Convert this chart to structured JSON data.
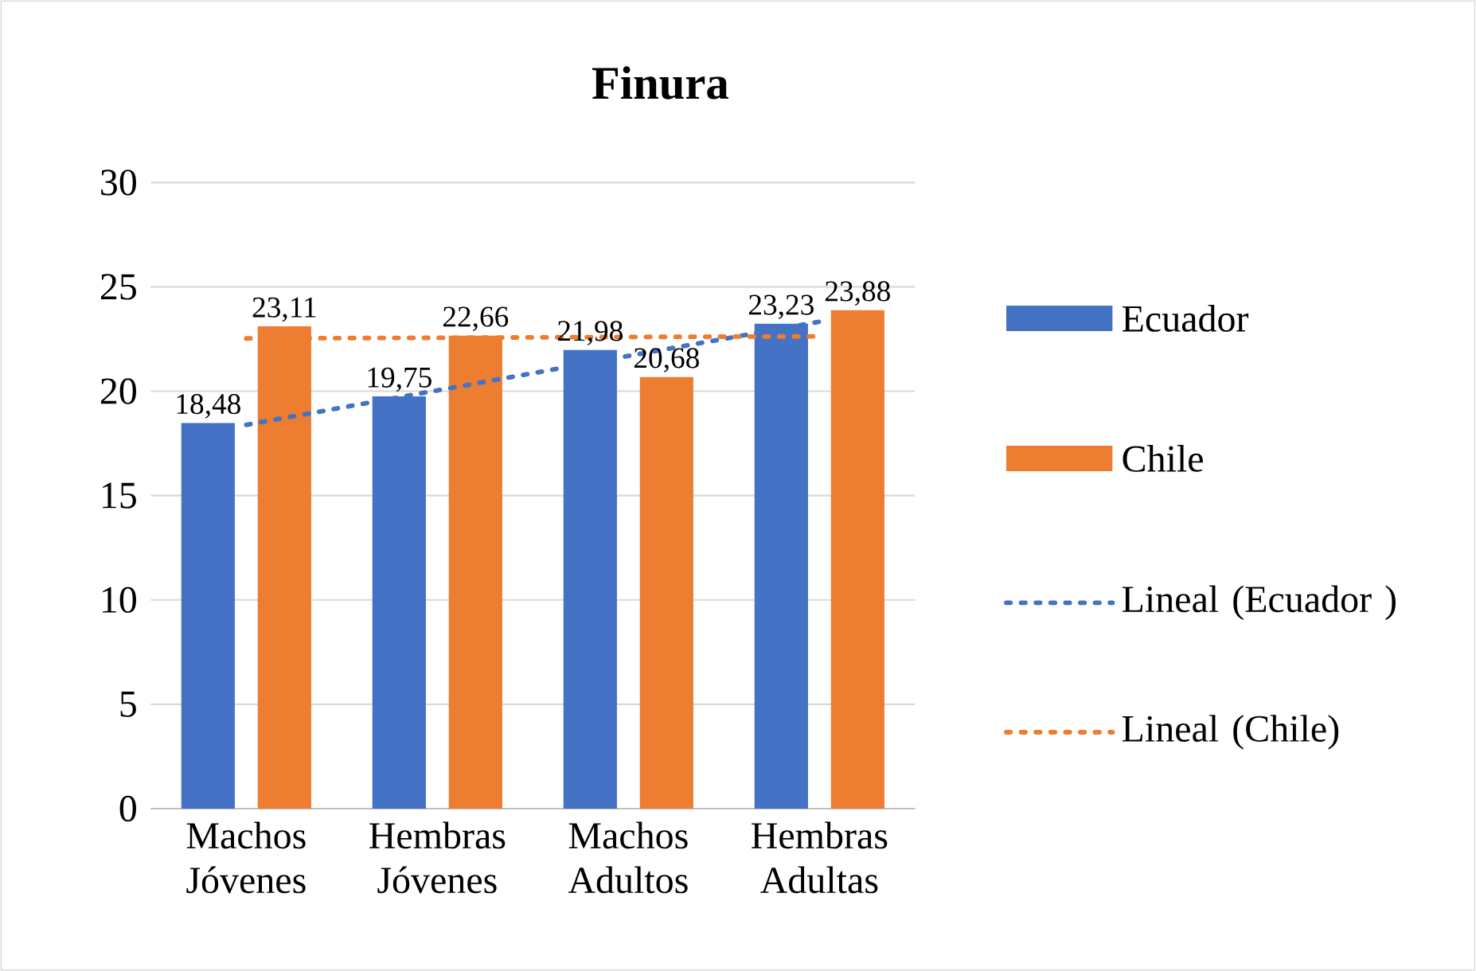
{
  "chart_data": {
    "type": "bar",
    "title": "Finura",
    "categories": [
      "Machos Jóvenes",
      "Hembras Jóvenes",
      "Machos Adultos",
      "Hembras Adultas"
    ],
    "series": [
      {
        "name": "Ecuador",
        "color": "#4472c4",
        "values": [
          18.48,
          19.75,
          21.98,
          23.23
        ],
        "value_labels": [
          "18,48",
          "19,75",
          "21,98",
          "23,23"
        ]
      },
      {
        "name": "Chile",
        "color": "#ed7d31",
        "values": [
          23.11,
          22.66,
          20.68,
          23.88
        ],
        "value_labels": [
          "23,11",
          "22,66",
          "20,68",
          "23,88"
        ]
      },
      {
        "name": "Lineal (Ecuador )",
        "type": "line",
        "line_style": "dotted",
        "color": "#4472c4",
        "values": [
          18.39,
          20.04,
          21.69,
          23.33
        ]
      },
      {
        "name": "Lineal (Chile)",
        "type": "line",
        "line_style": "dotted",
        "color": "#ed7d31",
        "values": [
          22.53,
          22.56,
          22.6,
          22.63
        ]
      }
    ],
    "ylim": [
      0,
      30
    ],
    "yticks": [
      0,
      5,
      10,
      15,
      20,
      25,
      30
    ],
    "grid": "y",
    "legend": "right"
  }
}
